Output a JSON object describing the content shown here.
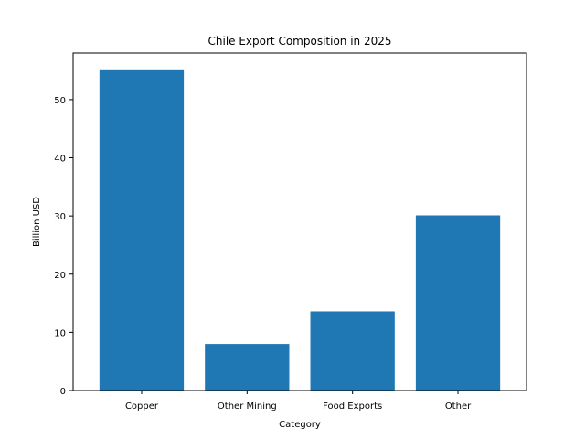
{
  "chart_data": {
    "type": "bar",
    "title": "Chile Export Composition in 2025",
    "xlabel": "Category",
    "ylabel": "Billion USD",
    "categories": [
      "Copper",
      "Other Mining",
      "Food Exports",
      "Other"
    ],
    "values": [
      55.2,
      8.0,
      13.6,
      30.1
    ],
    "ylim": [
      0,
      58
    ],
    "yticks": [
      0,
      10,
      20,
      30,
      40,
      50
    ],
    "bar_color": "#1f77b4",
    "grid": false,
    "legend": "none"
  }
}
